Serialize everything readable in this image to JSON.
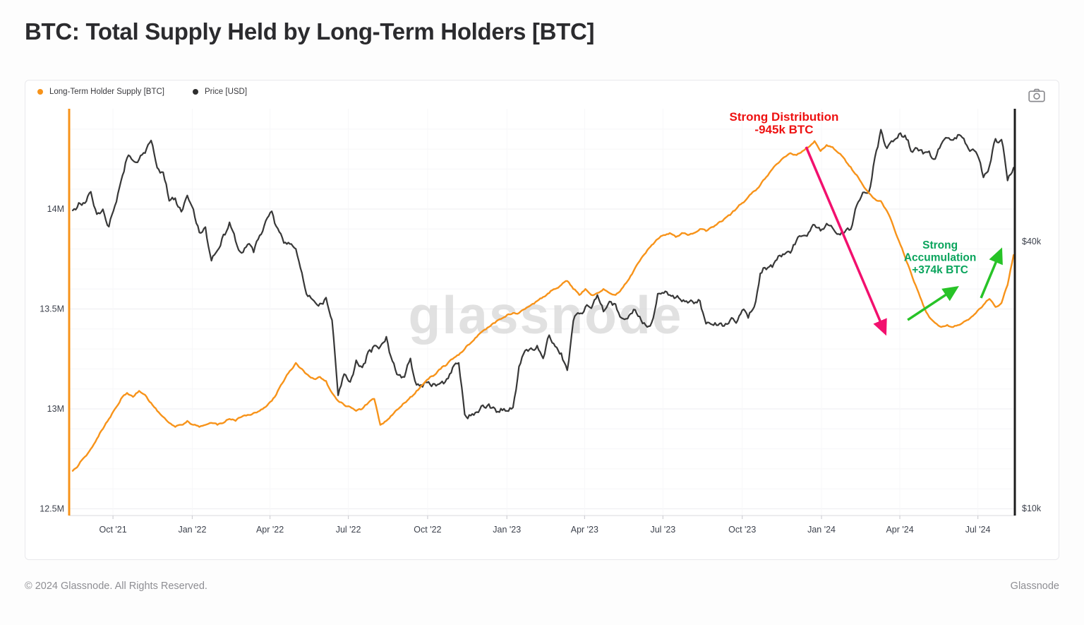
{
  "page": {
    "title": "BTC: Total Supply Held by Long-Term Holders [BTC]",
    "footer_left": "© 2024 Glassnode. All Rights Reserved.",
    "footer_right": "Glassnode"
  },
  "watermark": "glassnode",
  "legend": [
    {
      "label": "Long-Term Holder Supply [BTC]",
      "color": "#f7931a"
    },
    {
      "label": "Price [USD]",
      "color": "#2e2e2e"
    }
  ],
  "chart_data": {
    "type": "line",
    "title": "BTC: Total Supply Held by Long-Term Holders [BTC]",
    "x_axis": {
      "tick_labels": [
        "Oct '21",
        "Jan '22",
        "Apr '22",
        "Jul '22",
        "Oct '22",
        "Jan '23",
        "Apr '23",
        "Jul '23",
        "Oct '23",
        "Jan '24",
        "Apr '24",
        "Jul '24"
      ],
      "tick_years": [
        2021.748,
        2022.0,
        2022.247,
        2022.496,
        2022.748,
        2023.0,
        2023.247,
        2023.496,
        2023.748,
        2024.0,
        2024.249,
        2024.497
      ],
      "range_years": [
        2021.61,
        2024.62
      ]
    },
    "y_left": {
      "scale": "linear",
      "unit": "BTC",
      "ticks": [
        {
          "label": "14M",
          "value": 14.0
        },
        {
          "label": "13.5M",
          "value": 13.5
        },
        {
          "label": "13M",
          "value": 13.0
        },
        {
          "label": "12.5M",
          "value": 12.5
        }
      ],
      "minor_grid_step": 0.1,
      "range": [
        12.44,
        14.5
      ]
    },
    "y_right": {
      "scale": "log",
      "unit": "USD",
      "ticks": [
        {
          "label": "$40k",
          "value": 40
        },
        {
          "label": "$10k",
          "value": 10
        }
      ],
      "range_kusd": [
        10,
        80
      ]
    },
    "sampling": {
      "start_year": 2021.62,
      "step_years": 0.01917
    },
    "series": [
      {
        "name": "Long-Term Holder Supply [BTC]",
        "axis": "left",
        "unit": "M BTC",
        "color": "#f7931a",
        "values": [
          12.69,
          12.72,
          12.76,
          12.8,
          12.85,
          12.9,
          12.95,
          13.0,
          13.05,
          13.08,
          13.06,
          13.09,
          13.07,
          13.03,
          12.99,
          12.96,
          12.93,
          12.91,
          12.92,
          12.94,
          12.92,
          12.91,
          12.92,
          12.93,
          12.92,
          12.93,
          12.95,
          12.94,
          12.96,
          12.97,
          12.98,
          12.99,
          13.01,
          13.04,
          13.09,
          13.14,
          13.19,
          13.23,
          13.2,
          13.17,
          13.15,
          13.16,
          13.14,
          13.08,
          13.04,
          13.02,
          13.01,
          12.99,
          13.0,
          13.03,
          13.05,
          12.92,
          12.94,
          12.97,
          13.0,
          13.03,
          13.06,
          13.09,
          13.12,
          13.15,
          13.17,
          13.2,
          13.22,
          13.25,
          13.27,
          13.3,
          13.33,
          13.36,
          13.39,
          13.41,
          13.43,
          13.45,
          13.47,
          13.48,
          13.48,
          13.5,
          13.52,
          13.54,
          13.56,
          13.58,
          13.6,
          13.62,
          13.64,
          13.6,
          13.57,
          13.6,
          13.57,
          13.58,
          13.6,
          13.58,
          13.57,
          13.6,
          13.64,
          13.69,
          13.74,
          13.78,
          13.82,
          13.85,
          13.87,
          13.88,
          13.86,
          13.88,
          13.87,
          13.88,
          13.9,
          13.89,
          13.91,
          13.93,
          13.95,
          13.97,
          14.0,
          14.03,
          14.06,
          14.09,
          14.12,
          14.16,
          14.2,
          14.23,
          14.26,
          14.28,
          14.27,
          14.29,
          14.31,
          14.34,
          14.29,
          14.32,
          14.31,
          14.28,
          14.25,
          14.21,
          14.17,
          14.12,
          14.08,
          14.05,
          14.04,
          13.99,
          13.92,
          13.84,
          13.76,
          13.68,
          13.6,
          13.52,
          13.46,
          13.43,
          13.41,
          13.42,
          13.41,
          13.42,
          13.44,
          13.46,
          13.49,
          13.52,
          13.55,
          13.51,
          13.53,
          13.62,
          13.77
        ]
      },
      {
        "name": "Price [USD]",
        "axis": "right",
        "unit": "k USD",
        "color": "#383838",
        "values": [
          47.0,
          48.9,
          48.8,
          51.8,
          46.1,
          47.3,
          43.2,
          48.2,
          54.7,
          61.7,
          60.9,
          61.3,
          63.3,
          67.6,
          58.7,
          57.3,
          49.4,
          50.1,
          46.7,
          50.8,
          47.3,
          41.9,
          43.1,
          36.2,
          38.2,
          41.5,
          44.2,
          40.1,
          37.7,
          39.4,
          37.8,
          41.3,
          44.5,
          46.8,
          42.8,
          39.7,
          39.5,
          38.5,
          34.0,
          30.1,
          29.4,
          29.0,
          29.9,
          26.6,
          18.0,
          20.1,
          19.3,
          21.6,
          20.8,
          22.6,
          23.3,
          23.2,
          24.4,
          21.5,
          20.0,
          19.8,
          21.8,
          19.0,
          18.8,
          19.3,
          19.1,
          19.2,
          19.6,
          20.8,
          21.3,
          16.3,
          16.2,
          16.5,
          17.1,
          17.2,
          16.8,
          16.8,
          16.6,
          16.9,
          20.9,
          22.7,
          23.0,
          23.3,
          21.8,
          24.6,
          23.2,
          22.4,
          20.5,
          26.5,
          27.5,
          28.5,
          28.3,
          30.3,
          27.8,
          29.3,
          28.9,
          26.9,
          26.8,
          28.1,
          27.1,
          25.9,
          26.3,
          30.5,
          30.6,
          30.3,
          29.9,
          29.3,
          29.1,
          29.0,
          29.4,
          26.1,
          26.0,
          25.9,
          25.8,
          26.6,
          26.2,
          28.0,
          26.9,
          28.5,
          33.9,
          34.6,
          35.0,
          37.1,
          37.4,
          37.7,
          40.2,
          41.2,
          41.9,
          43.6,
          42.3,
          43.9,
          42.9,
          41.6,
          42.0,
          42.6,
          48.3,
          51.6,
          51.7,
          61.9,
          71.5,
          64.9,
          67.2,
          69.9,
          69.4,
          63.9,
          64.9,
          63.1,
          63.9,
          61.4,
          66.3,
          68.5,
          67.8,
          69.6,
          66.6,
          64.3,
          62.7,
          55.8,
          59.2,
          68.2,
          67.9,
          54.9,
          58.7
        ]
      }
    ],
    "annotations": {
      "distribution": {
        "text_lines": [
          "Strong Distribution",
          "-945k BTC"
        ],
        "text_color": "#ee1111",
        "text_center": {
          "t": 2023.881,
          "supply": 14.431
        },
        "arrow_color": "#f2106e",
        "arrow": {
          "from": {
            "t": 2023.951,
            "supply": 14.311
          },
          "to": {
            "t": 2024.2,
            "supply": 13.389
          }
        }
      },
      "accumulation": {
        "text_lines": [
          "Strong",
          "Accumulation",
          "+374k BTC"
        ],
        "text_color": "#0aa45c",
        "text_center": {
          "t": 2024.377,
          "supply": 13.76
        },
        "arrow_color": "#27c327",
        "arrows": [
          {
            "from": {
              "t": 2024.274,
              "supply": 13.445
            },
            "to": {
              "t": 2024.424,
              "supply": 13.601
            }
          },
          {
            "from": {
              "t": 2024.507,
              "supply": 13.555
            },
            "to": {
              "t": 2024.568,
              "supply": 13.785
            }
          }
        ]
      }
    }
  }
}
